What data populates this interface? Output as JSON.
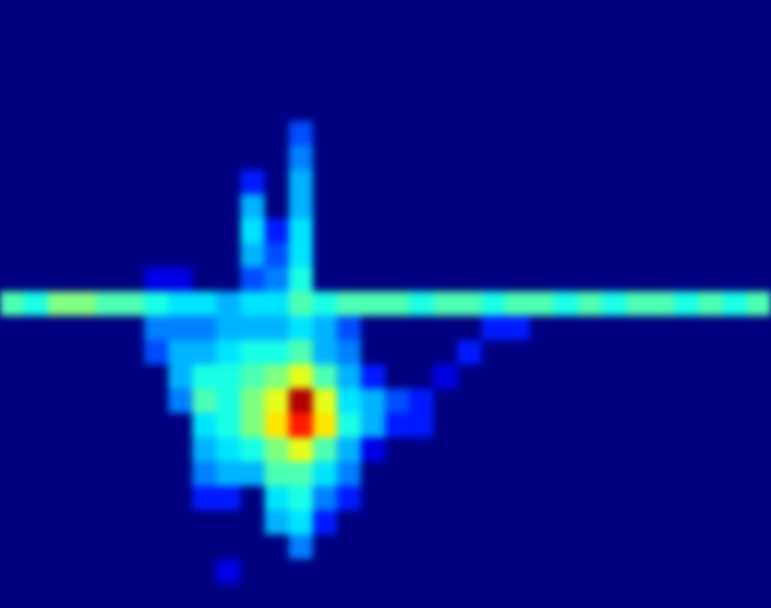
{
  "chart_data": {
    "type": "heatmap",
    "tick_labels": false,
    "xlim": [
      0,
      32
    ],
    "ylim": [
      0,
      25
    ],
    "zlim": [
      0,
      1
    ],
    "cells": [
      [
        0,
        0,
        0,
        0,
        0,
        0,
        0,
        0,
        0,
        0,
        0,
        0,
        0,
        0,
        0,
        0,
        0,
        0,
        0,
        0,
        0,
        0,
        0,
        0,
        0,
        0,
        0,
        0,
        0,
        0,
        0,
        0
      ],
      [
        0,
        0,
        0,
        0,
        0,
        0,
        0,
        0,
        0,
        0,
        0,
        0,
        0,
        0,
        0,
        0,
        0,
        0,
        0,
        0,
        0,
        0,
        0,
        0,
        0,
        0,
        0,
        0,
        0,
        0,
        0,
        0
      ],
      [
        0,
        0,
        0,
        0,
        0,
        0,
        0,
        0,
        0,
        0,
        0,
        0,
        0,
        0,
        0,
        0,
        0,
        0,
        0,
        0,
        0,
        0,
        0,
        0,
        0,
        0,
        0,
        0,
        0,
        0,
        0,
        0
      ],
      [
        0,
        0,
        0,
        0,
        0,
        0,
        0,
        0,
        0,
        0,
        0,
        0,
        0,
        0,
        0,
        0,
        0,
        0,
        0,
        0,
        0,
        0,
        0,
        0,
        0,
        0,
        0,
        0,
        0,
        0,
        0,
        0
      ],
      [
        0,
        0,
        0,
        0,
        0,
        0,
        0,
        0,
        0,
        0,
        0,
        0,
        0,
        0,
        0,
        0,
        0,
        0,
        0,
        0,
        0,
        0,
        0,
        0,
        0,
        0,
        0,
        0,
        0,
        0,
        0,
        0
      ],
      [
        0,
        0,
        0,
        0,
        0,
        0,
        0,
        0,
        0,
        0,
        0,
        0,
        0.2,
        0,
        0,
        0,
        0,
        0,
        0,
        0,
        0,
        0,
        0,
        0,
        0,
        0,
        0,
        0,
        0,
        0,
        0,
        0
      ],
      [
        0,
        0,
        0,
        0,
        0,
        0,
        0,
        0,
        0,
        0,
        0,
        0,
        0.25,
        0,
        0,
        0,
        0,
        0,
        0,
        0,
        0,
        0,
        0,
        0,
        0,
        0,
        0,
        0,
        0,
        0,
        0,
        0
      ],
      [
        0,
        0,
        0,
        0,
        0,
        0,
        0,
        0,
        0,
        0,
        0.15,
        0,
        0.3,
        0,
        0,
        0,
        0,
        0,
        0,
        0,
        0,
        0,
        0,
        0,
        0,
        0,
        0,
        0,
        0,
        0,
        0,
        0
      ],
      [
        0,
        0,
        0,
        0,
        0,
        0,
        0,
        0,
        0,
        0,
        0.3,
        0,
        0.3,
        0,
        0,
        0,
        0,
        0,
        0,
        0,
        0,
        0,
        0,
        0,
        0,
        0,
        0,
        0,
        0,
        0,
        0,
        0
      ],
      [
        0,
        0,
        0,
        0,
        0,
        0,
        0,
        0,
        0,
        0,
        0.35,
        0.15,
        0.35,
        0,
        0,
        0,
        0,
        0,
        0,
        0,
        0,
        0,
        0,
        0,
        0,
        0,
        0,
        0,
        0,
        0,
        0,
        0
      ],
      [
        0,
        0,
        0,
        0,
        0,
        0,
        0,
        0,
        0,
        0,
        0.3,
        0.2,
        0.35,
        0,
        0,
        0,
        0,
        0,
        0,
        0,
        0,
        0,
        0,
        0,
        0,
        0,
        0,
        0,
        0,
        0,
        0,
        0
      ],
      [
        0,
        0,
        0,
        0,
        0,
        0,
        0.1,
        0.1,
        0,
        0,
        0.2,
        0.25,
        0.4,
        0,
        0,
        0,
        0,
        0,
        0,
        0,
        0,
        0,
        0,
        0,
        0,
        0,
        0,
        0,
        0,
        0,
        0,
        0
      ],
      [
        0.45,
        0.4,
        0.5,
        0.5,
        0.45,
        0.45,
        0.4,
        0.35,
        0.35,
        0.3,
        0.35,
        0.35,
        0.45,
        0.4,
        0.45,
        0.45,
        0.45,
        0.4,
        0.45,
        0.45,
        0.4,
        0.45,
        0.45,
        0.4,
        0.45,
        0.4,
        0.45,
        0.45,
        0.4,
        0.45,
        0.4,
        0.45
      ],
      [
        0,
        0,
        0,
        0,
        0,
        0,
        0.25,
        0.25,
        0.25,
        0.3,
        0.3,
        0.3,
        0.35,
        0.3,
        0.2,
        0,
        0,
        0,
        0,
        0,
        0.15,
        0.15,
        0,
        0,
        0,
        0,
        0,
        0,
        0,
        0,
        0,
        0
      ],
      [
        0,
        0,
        0,
        0,
        0,
        0,
        0.2,
        0.3,
        0.3,
        0.35,
        0.4,
        0.4,
        0.45,
        0.3,
        0.25,
        0,
        0,
        0,
        0,
        0.15,
        0,
        0,
        0,
        0,
        0,
        0,
        0,
        0,
        0,
        0,
        0,
        0
      ],
      [
        0,
        0,
        0,
        0,
        0,
        0,
        0,
        0.3,
        0.4,
        0.4,
        0.45,
        0.5,
        0.6,
        0.45,
        0.3,
        0.15,
        0,
        0,
        0.1,
        0,
        0,
        0,
        0,
        0,
        0,
        0,
        0,
        0,
        0,
        0,
        0,
        0
      ],
      [
        0,
        0,
        0,
        0,
        0,
        0,
        0,
        0.25,
        0.45,
        0.4,
        0.5,
        0.6,
        0.95,
        0.6,
        0.35,
        0.3,
        0.2,
        0.15,
        0,
        0,
        0,
        0,
        0,
        0,
        0,
        0,
        0,
        0,
        0,
        0,
        0,
        0
      ],
      [
        0,
        0,
        0,
        0,
        0,
        0,
        0,
        0,
        0.35,
        0.4,
        0.5,
        0.65,
        0.85,
        0.65,
        0.4,
        0.3,
        0.15,
        0.15,
        0,
        0,
        0,
        0,
        0,
        0,
        0,
        0,
        0,
        0,
        0,
        0,
        0,
        0
      ],
      [
        0,
        0,
        0,
        0,
        0,
        0,
        0,
        0,
        0.3,
        0.35,
        0.4,
        0.5,
        0.6,
        0.45,
        0.3,
        0.1,
        0,
        0,
        0,
        0,
        0,
        0,
        0,
        0,
        0,
        0,
        0,
        0,
        0,
        0,
        0,
        0
      ],
      [
        0,
        0,
        0,
        0,
        0,
        0,
        0,
        0,
        0.25,
        0.3,
        0.3,
        0.45,
        0.45,
        0.35,
        0.25,
        0,
        0,
        0,
        0,
        0,
        0,
        0,
        0,
        0,
        0,
        0,
        0,
        0,
        0,
        0,
        0,
        0
      ],
      [
        0,
        0,
        0,
        0,
        0,
        0,
        0,
        0,
        0.15,
        0.15,
        0,
        0.35,
        0.4,
        0.25,
        0.15,
        0,
        0,
        0,
        0,
        0,
        0,
        0,
        0,
        0,
        0,
        0,
        0,
        0,
        0,
        0,
        0,
        0
      ],
      [
        0,
        0,
        0,
        0,
        0,
        0,
        0,
        0,
        0,
        0,
        0,
        0.3,
        0.35,
        0.15,
        0,
        0,
        0,
        0,
        0,
        0,
        0,
        0,
        0,
        0,
        0,
        0,
        0,
        0,
        0,
        0,
        0,
        0
      ],
      [
        0,
        0,
        0,
        0,
        0,
        0,
        0,
        0,
        0,
        0,
        0,
        0,
        0.25,
        0,
        0,
        0,
        0,
        0,
        0,
        0,
        0,
        0,
        0,
        0,
        0,
        0,
        0,
        0,
        0,
        0,
        0,
        0
      ],
      [
        0,
        0,
        0,
        0,
        0,
        0,
        0,
        0,
        0,
        0.1,
        0,
        0,
        0,
        0,
        0,
        0,
        0,
        0,
        0,
        0,
        0,
        0,
        0,
        0,
        0,
        0,
        0,
        0,
        0,
        0,
        0,
        0
      ],
      [
        0,
        0,
        0,
        0,
        0,
        0,
        0,
        0,
        0,
        0,
        0,
        0,
        0,
        0,
        0,
        0,
        0,
        0,
        0,
        0,
        0,
        0,
        0,
        0,
        0,
        0,
        0,
        0,
        0,
        0,
        0,
        0
      ]
    ]
  }
}
